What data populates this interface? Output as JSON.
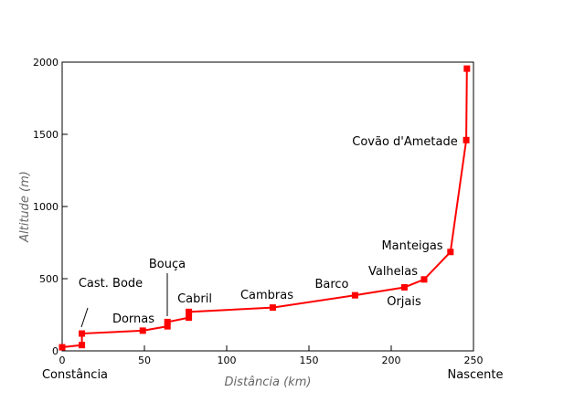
{
  "chart_data": {
    "type": "line",
    "x_label": "Distância (km)",
    "y_label": "Altitude (m)",
    "x": [
      0,
      12,
      12,
      49,
      64,
      64,
      77,
      77,
      128,
      178,
      208,
      220,
      236,
      245.6,
      246
    ],
    "series": [
      {
        "color": "#ff0000",
        "values": [
          25,
          40,
          120,
          140,
          170,
          200,
          230,
          270,
          300,
          385,
          440,
          495,
          685,
          1460,
          1955
        ]
      }
    ],
    "xlim": [
      0,
      250
    ],
    "xticks": [
      0,
      50,
      100,
      150,
      200,
      250
    ],
    "ylim": [
      0,
      2000
    ],
    "yticks": [
      0,
      500,
      1000,
      1500,
      2000
    ],
    "grid": false,
    "annotations": [
      "Constância",
      "Nascente",
      "Cast. Bode",
      "Dornas",
      "Bouça",
      "Cabril",
      "Cambras",
      "Barco",
      "Valhelas",
      "Orjais",
      "Manteigas",
      "Covão d'Ametade"
    ]
  }
}
